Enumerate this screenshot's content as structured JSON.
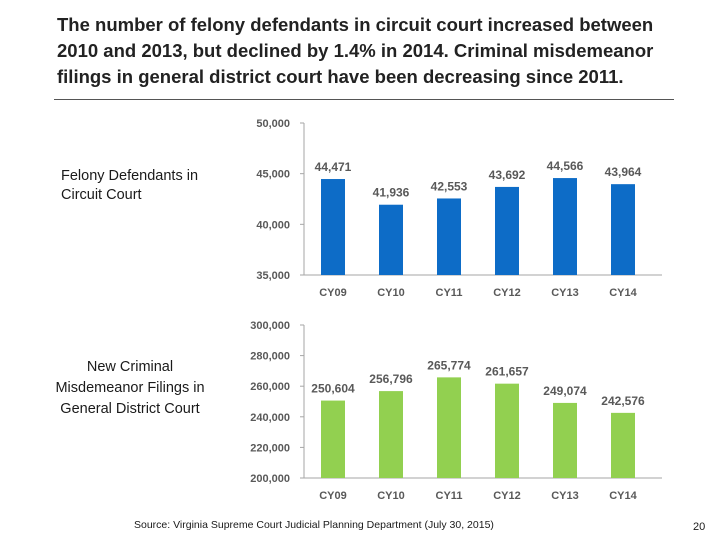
{
  "slide": {
    "title": "The number of felony defendants in circuit court increased between 2010 and 2013, but declined by 1.4% in 2014.  Criminal misdemeanor filings in general district court have been decreasing since 2011.",
    "source": "Source:  Virginia Supreme Court Judicial Planning Department (July 30, 2015)",
    "page_number": "20"
  },
  "colors": {
    "felony_bar": "#0D6CC7",
    "misdemeanor_bar": "#92D050",
    "axis": "#a6a6a6",
    "text": "#595959"
  },
  "chart_data": [
    {
      "type": "bar",
      "label": "Felony Defendants in Circuit Court",
      "categories": [
        "CY09",
        "CY10",
        "CY11",
        "CY12",
        "CY13",
        "CY14"
      ],
      "values": [
        44471,
        41936,
        42553,
        43692,
        44566,
        43964
      ],
      "value_labels": [
        "44,471",
        "41,936",
        "42,553",
        "43,692",
        "44,566",
        "43,964"
      ],
      "ylim": [
        35000,
        50000
      ],
      "yticks": [
        35000,
        40000,
        45000,
        50000
      ],
      "ytick_labels": [
        "35,000",
        "40,000",
        "45,000",
        "50,000"
      ],
      "title": "",
      "xlabel": "",
      "ylabel": ""
    },
    {
      "type": "bar",
      "label": "New Criminal Misdemeanor Filings in General District Court",
      "categories": [
        "CY09",
        "CY10",
        "CY11",
        "CY12",
        "CY13",
        "CY14"
      ],
      "values": [
        250604,
        256796,
        265774,
        261657,
        249074,
        242576
      ],
      "value_labels": [
        "250,604",
        "256,796",
        "265,774",
        "261,657",
        "249,074",
        "242,576"
      ],
      "ylim": [
        200000,
        300000
      ],
      "yticks": [
        200000,
        220000,
        240000,
        260000,
        280000,
        300000
      ],
      "ytick_labels": [
        "200,000",
        "220,000",
        "240,000",
        "260,000",
        "280,000",
        "300,000"
      ],
      "title": "",
      "xlabel": "",
      "ylabel": ""
    }
  ]
}
